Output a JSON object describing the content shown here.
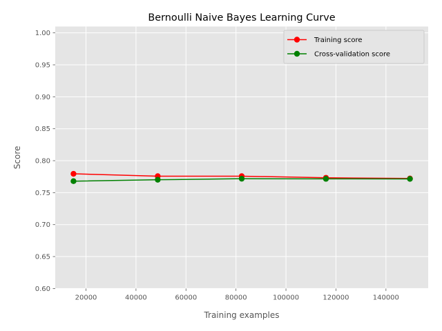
{
  "chart_data": {
    "type": "line",
    "title": "Bernoulli Naive Bayes Learning Curve",
    "xlabel": "Training examples",
    "ylabel": "Score",
    "xlim": [
      7700,
      156900
    ],
    "ylim": [
      0.6,
      1.01
    ],
    "xticks": [
      20000,
      40000,
      60000,
      80000,
      100000,
      120000,
      140000
    ],
    "xtick_labels": [
      "20000",
      "40000",
      "60000",
      "80000",
      "100000",
      "120000",
      "140000"
    ],
    "yticks": [
      0.6,
      0.65,
      0.7,
      0.75,
      0.8,
      0.85,
      0.9,
      0.95,
      1.0
    ],
    "ytick_labels": [
      "0.60",
      "0.65",
      "0.70",
      "0.75",
      "0.80",
      "0.85",
      "0.90",
      "0.95",
      "1.00"
    ],
    "grid": true,
    "legend_position": "top-right",
    "background": "#e5e5e5",
    "series": [
      {
        "name": "Training score",
        "color": "#ff0000",
        "marker": "circle",
        "x": [
          15000,
          48700,
          82300,
          116000,
          149600
        ],
        "y": [
          0.7795,
          0.7758,
          0.7758,
          0.7733,
          0.7722
        ]
      },
      {
        "name": "Cross-validation score",
        "color": "#008000",
        "marker": "circle",
        "x": [
          15000,
          48700,
          82300,
          116000,
          149600
        ],
        "y": [
          0.768,
          0.7702,
          0.7718,
          0.7716,
          0.7715
        ]
      }
    ]
  }
}
